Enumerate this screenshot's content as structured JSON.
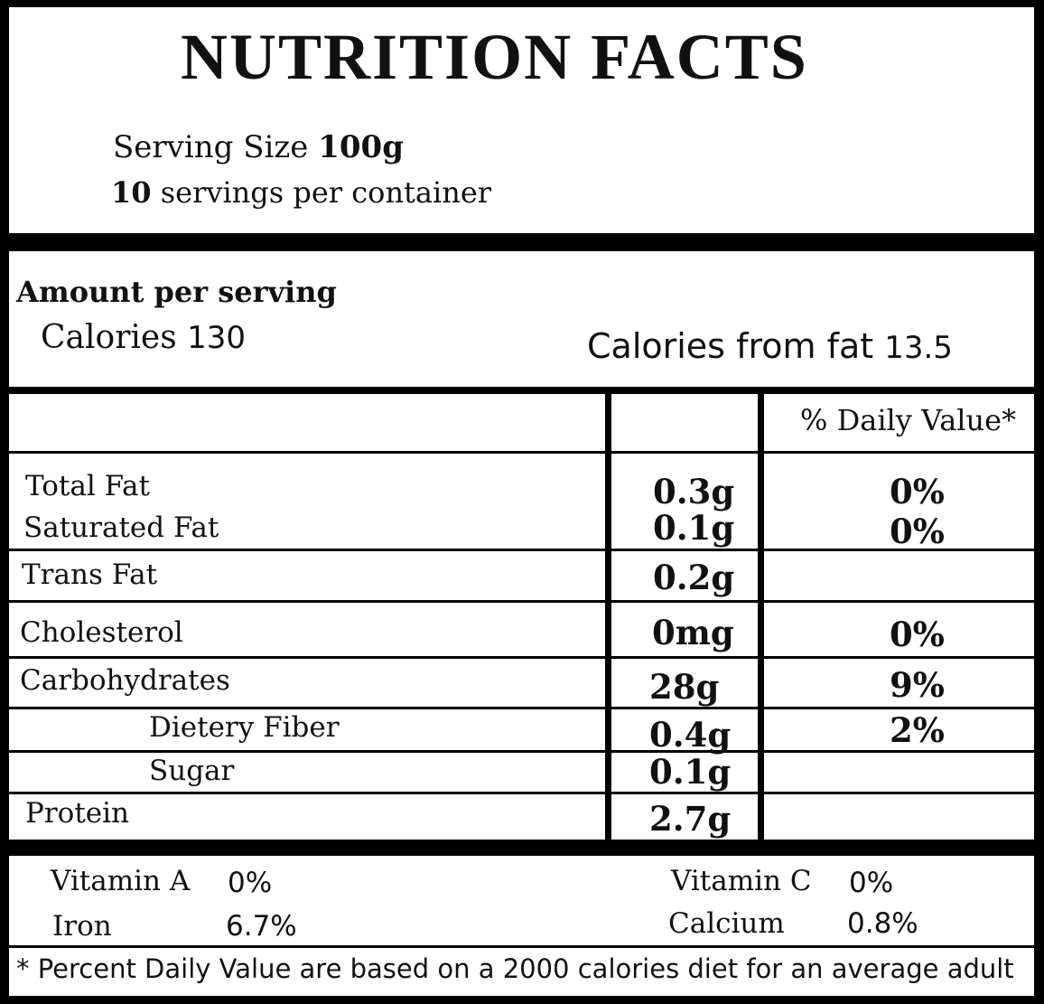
{
  "header": {
    "title": "NUTRITION FACTS",
    "serving_size_label": "Serving Size",
    "serving_size_value": "100g",
    "servings_count": "10",
    "servings_label": "servings per container"
  },
  "calories": {
    "amount_label": "Amount per serving",
    "calories_label": "Calories",
    "calories_value": "130",
    "from_fat_label": "Calories from fat",
    "from_fat_value": "13.5"
  },
  "table": {
    "dv_header": "% Daily Value*",
    "rows": [
      {
        "label": "Total Fat",
        "amount": "0.3g",
        "dv": "0%"
      },
      {
        "label": "Saturated Fat",
        "amount": "0.1g",
        "dv": "0%"
      },
      {
        "label": "Trans Fat",
        "amount": "0.2g",
        "dv": ""
      },
      {
        "label": "Cholesterol",
        "amount": "0mg",
        "dv": "0%"
      },
      {
        "label": "Carbohydrates",
        "amount": "28g",
        "dv": "9%"
      },
      {
        "label": "Dietery Fiber",
        "amount": "0.4g",
        "dv": "2%"
      },
      {
        "label": "Sugar",
        "amount": "0.1g",
        "dv": ""
      },
      {
        "label": "Protein",
        "amount": "2.7g",
        "dv": ""
      }
    ]
  },
  "vitamins": {
    "vitamin_a_label": "Vitamin A",
    "vitamin_a_value": "0%",
    "iron_label": "Iron",
    "iron_value": "6.7%",
    "vitamin_c_label": "Vitamin C",
    "vitamin_c_value": "0%",
    "calcium_label": "Calcium",
    "calcium_value": "0.8%"
  },
  "footnote": "* Percent Daily Value are based on a 2000 calories diet for an average adult"
}
